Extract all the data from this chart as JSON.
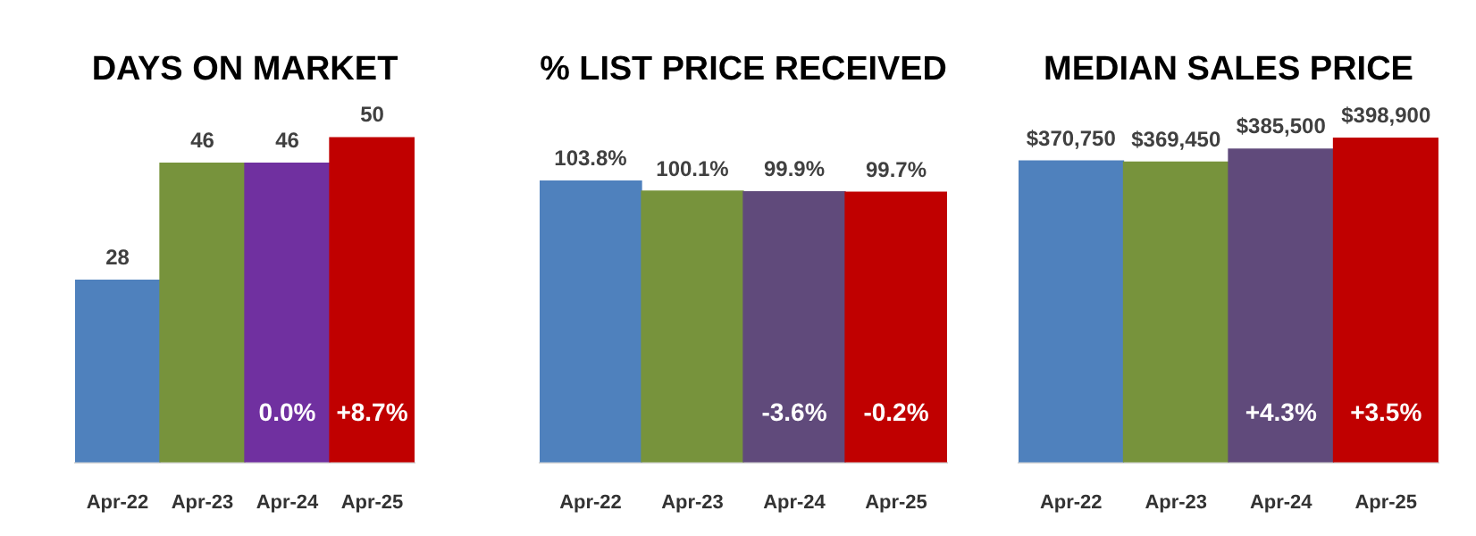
{
  "chart_data": [
    {
      "type": "bar",
      "title": "DAYS ON MARKET",
      "categories": [
        "Apr-22",
        "Apr-23",
        "Apr-24",
        "Apr-25"
      ],
      "values": [
        28,
        46,
        46,
        50
      ],
      "colors": [
        "#4f81bd",
        "#77933c",
        "#7030a0",
        "#c00000"
      ],
      "tick_labels": "x",
      "data_labels": true,
      "annotations": [
        "0.0%",
        "+8.7%"
      ]
    },
    {
      "type": "bar",
      "title": "% LIST PRICE RECEIVED",
      "categories": [
        "Apr-22",
        "Apr-23",
        "Apr-24",
        "Apr-25"
      ],
      "values": [
        103.8,
        100.1,
        99.9,
        99.7
      ],
      "value_labels": [
        "103.8%",
        "100.1%",
        "99.9%",
        "99.7%"
      ],
      "colors": [
        "#4f81bd",
        "#77933c",
        "#604a7b",
        "#c00000"
      ],
      "tick_labels": "x",
      "annotations": [
        "-3.6%",
        "-0.2%"
      ]
    },
    {
      "type": "bar",
      "title": "MEDIAN SALES PRICE",
      "categories": [
        "Apr-22",
        "Apr-23",
        "Apr-24",
        "Apr-25"
      ],
      "values": [
        370750,
        369450,
        385500,
        398900
      ],
      "value_labels": [
        "$370,750",
        "$369,450",
        "$385,500",
        "$398,900"
      ],
      "colors": [
        "#4f81bd",
        "#77933c",
        "#604a7b",
        "#c00000"
      ],
      "tick_labels": "x",
      "annotations": [
        "+4.3%",
        "+3.5%"
      ]
    }
  ]
}
